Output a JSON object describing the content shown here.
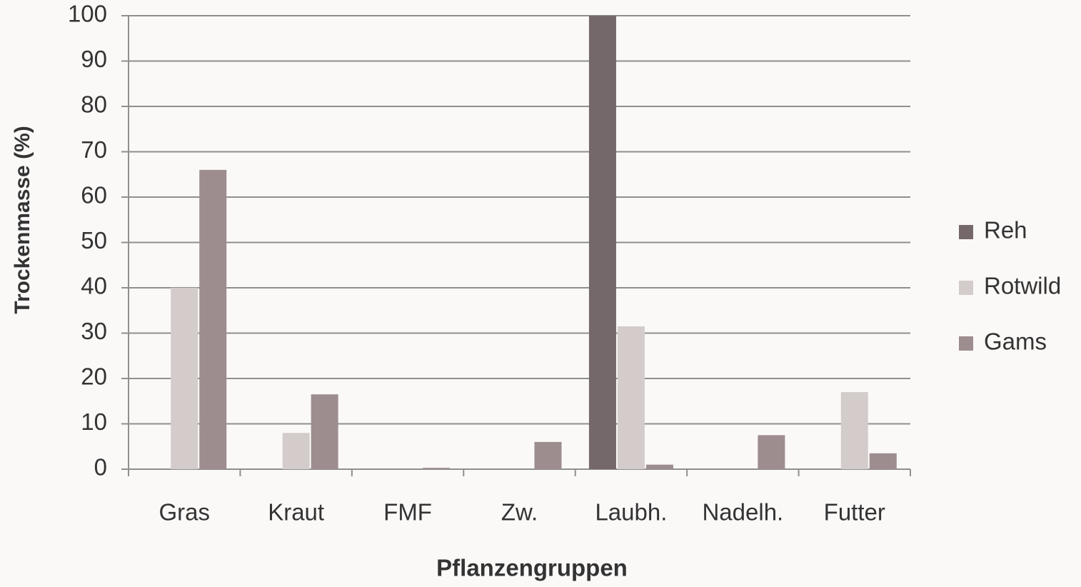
{
  "chart_data": {
    "type": "bar",
    "y_label": "Trockenmasse (%)",
    "x_label": "Pflanzengruppen",
    "categories": [
      "Gras",
      "Kraut",
      "FMF",
      "Zw.",
      "Laubh.",
      "Nadelh.",
      "Futter"
    ],
    "series": [
      {
        "name": "Reh",
        "color": "#75686a",
        "values": [
          0,
          0,
          0,
          0,
          100,
          0,
          0
        ]
      },
      {
        "name": "Rotwild",
        "color": "#d3cccb",
        "values": [
          40,
          8,
          0,
          0,
          31.5,
          0,
          17
        ]
      },
      {
        "name": "Gams",
        "color": "#9d8d8e",
        "values": [
          66,
          16.5,
          0.3,
          6,
          1,
          7.5,
          3.5
        ]
      }
    ],
    "ylim": [
      0,
      100
    ],
    "yticks": [
      0,
      10,
      20,
      30,
      40,
      50,
      60,
      70,
      80,
      90,
      100
    ],
    "grid": true,
    "legend": "right"
  }
}
